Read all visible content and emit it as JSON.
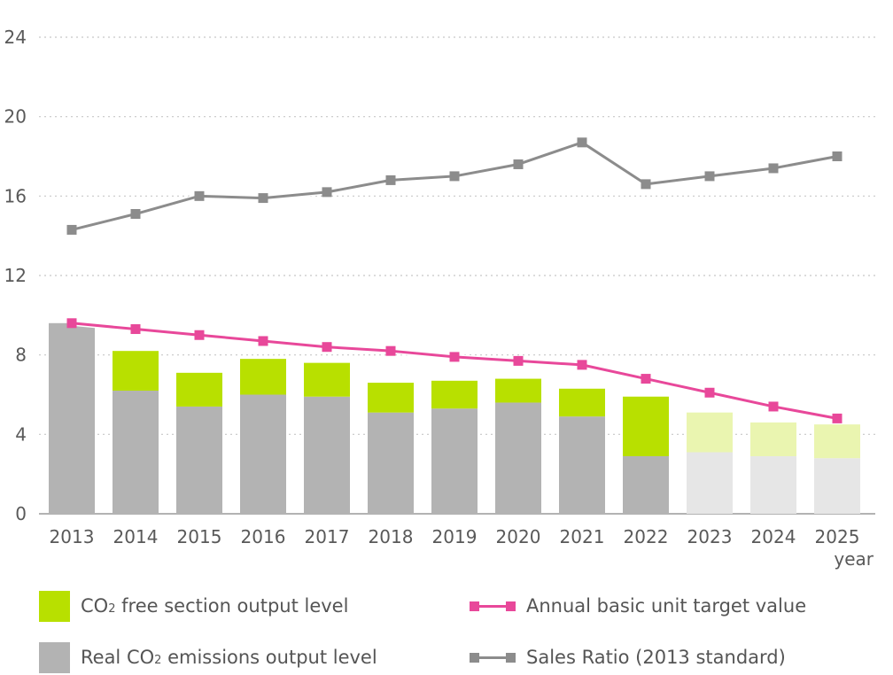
{
  "chart_data": {
    "type": "bar",
    "categories": [
      "2013",
      "2014",
      "2015",
      "2016",
      "2017",
      "2018",
      "2019",
      "2020",
      "2021",
      "2022",
      "2023",
      "2024",
      "2025"
    ],
    "xlabel": "year",
    "ylim": [
      0,
      24
    ],
    "yticks": [
      "0",
      "4",
      "8",
      "12",
      "16",
      "20",
      "24"
    ],
    "grid": "horizontal-dotted",
    "legend_position": "bottom",
    "forecast_from": "2023",
    "series": [
      {
        "name": "Real CO2 emissions output level",
        "kind": "stacked-bar",
        "color": "#b3b3b3",
        "forecast_color": "#e6e6e6",
        "values": [
          9.6,
          6.2,
          5.4,
          6.0,
          5.9,
          5.1,
          5.3,
          5.6,
          4.9,
          2.9,
          3.1,
          2.9,
          2.8
        ]
      },
      {
        "name": "CO2 free section output level",
        "kind": "stacked-bar",
        "color": "#b8e000",
        "forecast_color": "#eaf5b0",
        "values": [
          0.0,
          2.0,
          1.7,
          1.8,
          1.7,
          1.5,
          1.4,
          1.2,
          1.4,
          3.0,
          2.0,
          1.7,
          1.7
        ]
      },
      {
        "name": "Annual basic unit target value",
        "kind": "line",
        "color": "#e8489a",
        "values": [
          9.6,
          9.3,
          9.0,
          8.7,
          8.4,
          8.2,
          7.9,
          7.7,
          7.5,
          6.8,
          6.1,
          5.4,
          4.8
        ]
      },
      {
        "name": "Sales Ratio (2013 standard)",
        "kind": "line",
        "color": "#8c8c8c",
        "values": [
          14.3,
          15.1,
          16.0,
          15.9,
          16.2,
          16.8,
          17.0,
          17.6,
          18.7,
          16.6,
          17.0,
          17.4,
          18.0
        ]
      }
    ]
  },
  "legend": {
    "co2_free_prefix": "CO",
    "co2_free_sub": "2",
    "co2_free_suffix": " free section output level",
    "real_prefix": "Real CO",
    "real_sub": "2",
    "real_suffix": " emissions output level",
    "target": "Annual basic unit target value",
    "sales": "Sales Ratio (2013 standard)"
  }
}
